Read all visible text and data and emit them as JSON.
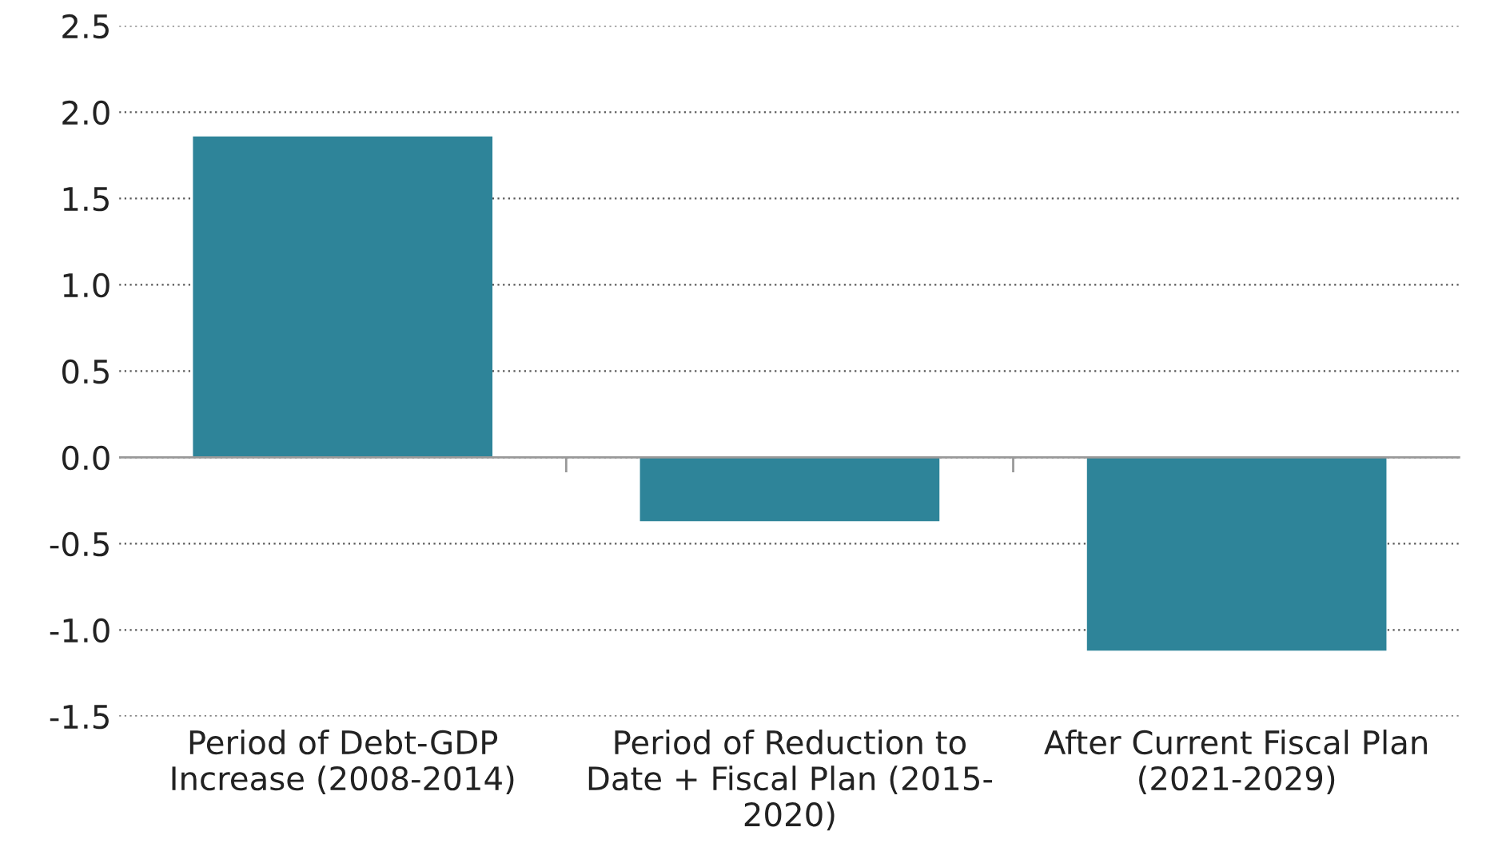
{
  "chart_data": {
    "type": "bar",
    "categories": [
      "Period of Debt-GDP\nIncrease (2008-2014)",
      "Period of Reduction to\nDate + Fiscal Plan (2015-\n2020)",
      "After Current Fiscal Plan\n(2021-2029)"
    ],
    "values": [
      1.86,
      -0.37,
      -1.12
    ],
    "color": "#2e8499",
    "ylim": [
      -1.5,
      2.5
    ],
    "yticks": [
      {
        "value": -1.5,
        "label": "-1.5"
      },
      {
        "value": -1.0,
        "label": "-1.0"
      },
      {
        "value": -0.5,
        "label": "-0.5"
      },
      {
        "value": 0.0,
        "label": "0.0"
      },
      {
        "value": 0.5,
        "label": "0.5"
      },
      {
        "value": 1.0,
        "label": "1.0"
      },
      {
        "value": 1.5,
        "label": "1.5"
      },
      {
        "value": 2.0,
        "label": "2.0"
      },
      {
        "value": 2.5,
        "label": "2.5"
      }
    ],
    "grid": "y"
  }
}
